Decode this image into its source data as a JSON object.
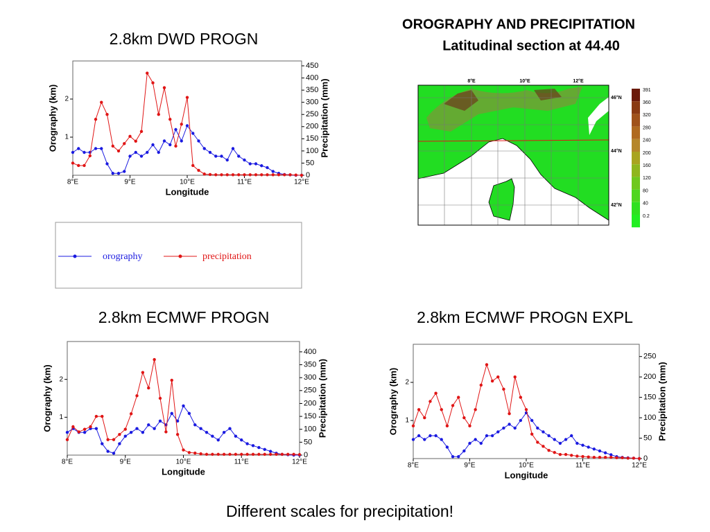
{
  "title": "OROGRAPHY AND PRECIPITATION",
  "subtitle": "Latitudinal section at 44.40",
  "footer": "Different scales for precipitation!",
  "map": {
    "lon_labels": [
      "8°E",
      "10°E",
      "12°E"
    ],
    "lat_labels": [
      "46°N",
      "44°N",
      "42°N"
    ],
    "colorbar": [
      "391",
      "360",
      "320",
      "280",
      "240",
      "200",
      "160",
      "120",
      "80",
      "40",
      "0.2"
    ]
  },
  "chart_data": [
    {
      "type": "line",
      "title": "2.8km DWD PROGN",
      "x_label": "Longitude",
      "y_label": "Orography (km)",
      "y2_label": "Precipitation (mm)",
      "xlim": [
        8,
        12
      ],
      "xticks": [
        {
          "value": 8,
          "label": "8°E"
        },
        {
          "value": 9,
          "label": "9°E"
        },
        {
          "value": 10,
          "label": "10°E"
        },
        {
          "value": 11,
          "label": "11°E"
        },
        {
          "value": 12,
          "label": "12°E"
        }
      ],
      "ylim": [
        0,
        3
      ],
      "yticks": [
        1,
        2
      ],
      "y2lim": [
        0,
        470
      ],
      "y2ticks": [
        0,
        50,
        100,
        150,
        200,
        250,
        300,
        350,
        400,
        450
      ],
      "x": [
        8.0,
        8.1,
        8.2,
        8.3,
        8.4,
        8.5,
        8.6,
        8.7,
        8.8,
        8.9,
        9.0,
        9.1,
        9.2,
        9.3,
        9.4,
        9.5,
        9.6,
        9.7,
        9.8,
        9.9,
        10.0,
        10.1,
        10.2,
        10.3,
        10.4,
        10.5,
        10.6,
        10.7,
        10.8,
        10.9,
        11.0,
        11.1,
        11.2,
        11.3,
        11.4,
        11.5,
        11.6,
        11.7,
        11.8,
        11.9,
        12.0
      ],
      "series": [
        {
          "name": "orography",
          "color": "#1a1ae0",
          "values": [
            0.6,
            0.7,
            0.6,
            0.6,
            0.7,
            0.7,
            0.3,
            0.05,
            0.05,
            0.1,
            0.5,
            0.6,
            0.5,
            0.6,
            0.8,
            0.6,
            0.9,
            0.8,
            1.2,
            0.9,
            1.3,
            1.1,
            0.9,
            0.7,
            0.6,
            0.5,
            0.5,
            0.4,
            0.7,
            0.5,
            0.4,
            0.3,
            0.3,
            0.25,
            0.2,
            0.1,
            0.05,
            0.02,
            0.01,
            0,
            0
          ]
        },
        {
          "name": "precipitation",
          "color": "#e01515",
          "axis": "y2",
          "values": [
            50,
            40,
            40,
            80,
            230,
            300,
            250,
            120,
            100,
            130,
            160,
            140,
            180,
            420,
            380,
            250,
            360,
            230,
            120,
            210,
            320,
            40,
            20,
            5,
            3,
            2,
            2,
            2,
            2,
            2,
            2,
            2,
            2,
            2,
            2,
            2,
            2,
            2,
            2,
            1,
            0
          ]
        }
      ]
    },
    {
      "type": "line",
      "title": "2.8km ECMWF PROGN",
      "x_label": "Longitude",
      "y_label": "Orography (km)",
      "y2_label": "Precipitation (mm)",
      "xlim": [
        8,
        12
      ],
      "xticks": [
        {
          "value": 8,
          "label": "8°E"
        },
        {
          "value": 9,
          "label": "9°E"
        },
        {
          "value": 10,
          "label": "10°E"
        },
        {
          "value": 11,
          "label": "11°E"
        },
        {
          "value": 12,
          "label": "12°E"
        }
      ],
      "ylim": [
        0,
        3
      ],
      "yticks": [
        1,
        2
      ],
      "y2lim": [
        0,
        440
      ],
      "y2ticks": [
        0,
        50,
        100,
        150,
        200,
        250,
        300,
        350,
        400
      ],
      "x": [
        8.0,
        8.1,
        8.2,
        8.3,
        8.4,
        8.5,
        8.6,
        8.7,
        8.8,
        8.9,
        9.0,
        9.1,
        9.2,
        9.3,
        9.4,
        9.5,
        9.6,
        9.7,
        9.8,
        9.9,
        10.0,
        10.1,
        10.2,
        10.3,
        10.4,
        10.5,
        10.6,
        10.7,
        10.8,
        10.9,
        11.0,
        11.1,
        11.2,
        11.3,
        11.4,
        11.5,
        11.6,
        11.7,
        11.8,
        11.9,
        12.0
      ],
      "series": [
        {
          "color": "#1a1ae0",
          "values": [
            0.6,
            0.7,
            0.6,
            0.6,
            0.7,
            0.7,
            0.3,
            0.1,
            0.05,
            0.3,
            0.5,
            0.6,
            0.7,
            0.6,
            0.8,
            0.7,
            0.9,
            0.8,
            1.1,
            0.9,
            1.3,
            1.1,
            0.8,
            0.7,
            0.6,
            0.5,
            0.4,
            0.6,
            0.7,
            0.5,
            0.4,
            0.3,
            0.25,
            0.2,
            0.15,
            0.1,
            0.05,
            0.02,
            0.01,
            0,
            0
          ]
        },
        {
          "color": "#e01515",
          "axis": "y2",
          "values": [
            60,
            110,
            90,
            100,
            110,
            150,
            150,
            60,
            60,
            80,
            100,
            160,
            230,
            320,
            260,
            370,
            220,
            90,
            290,
            80,
            20,
            10,
            8,
            5,
            3,
            3,
            3,
            3,
            3,
            3,
            3,
            3,
            3,
            3,
            3,
            3,
            3,
            3,
            3,
            3,
            2
          ]
        }
      ]
    },
    {
      "type": "line",
      "title": "2.8km ECMWF PROGN EXPL",
      "x_label": "Longitude",
      "y_label": "Orography (km)",
      "y2_label": "Precipitation (mm)",
      "xlim": [
        8,
        12
      ],
      "xticks": [
        {
          "value": 8,
          "label": "8°E"
        },
        {
          "value": 9,
          "label": "9°E"
        },
        {
          "value": 10,
          "label": "10°E"
        },
        {
          "value": 11,
          "label": "11°E"
        },
        {
          "value": 12,
          "label": "12°E"
        }
      ],
      "ylim": [
        0,
        3
      ],
      "yticks": [
        1,
        2
      ],
      "y2lim": [
        0,
        280
      ],
      "y2ticks": [
        0,
        50,
        100,
        150,
        200,
        250
      ],
      "x": [
        8.0,
        8.1,
        8.2,
        8.3,
        8.4,
        8.5,
        8.6,
        8.7,
        8.8,
        8.9,
        9.0,
        9.1,
        9.2,
        9.3,
        9.4,
        9.5,
        9.6,
        9.7,
        9.8,
        9.9,
        10.0,
        10.1,
        10.2,
        10.3,
        10.4,
        10.5,
        10.6,
        10.7,
        10.8,
        10.9,
        11.0,
        11.1,
        11.2,
        11.3,
        11.4,
        11.5,
        11.6,
        11.7,
        11.8,
        11.9,
        12.0
      ],
      "series": [
        {
          "color": "#1a1ae0",
          "values": [
            0.5,
            0.6,
            0.5,
            0.6,
            0.6,
            0.5,
            0.3,
            0.05,
            0.05,
            0.2,
            0.4,
            0.5,
            0.4,
            0.6,
            0.6,
            0.7,
            0.8,
            0.9,
            0.8,
            1.0,
            1.2,
            1.0,
            0.8,
            0.7,
            0.6,
            0.5,
            0.4,
            0.5,
            0.6,
            0.4,
            0.35,
            0.3,
            0.25,
            0.2,
            0.15,
            0.1,
            0.05,
            0.03,
            0.02,
            0.01,
            0
          ]
        },
        {
          "color": "#e01515",
          "axis": "y2",
          "values": [
            80,
            120,
            100,
            140,
            160,
            120,
            80,
            130,
            150,
            100,
            80,
            120,
            180,
            230,
            190,
            200,
            170,
            110,
            200,
            150,
            120,
            60,
            40,
            30,
            20,
            15,
            10,
            10,
            8,
            6,
            5,
            4,
            3,
            3,
            3,
            3,
            2,
            2,
            1,
            1,
            0
          ]
        }
      ]
    }
  ]
}
